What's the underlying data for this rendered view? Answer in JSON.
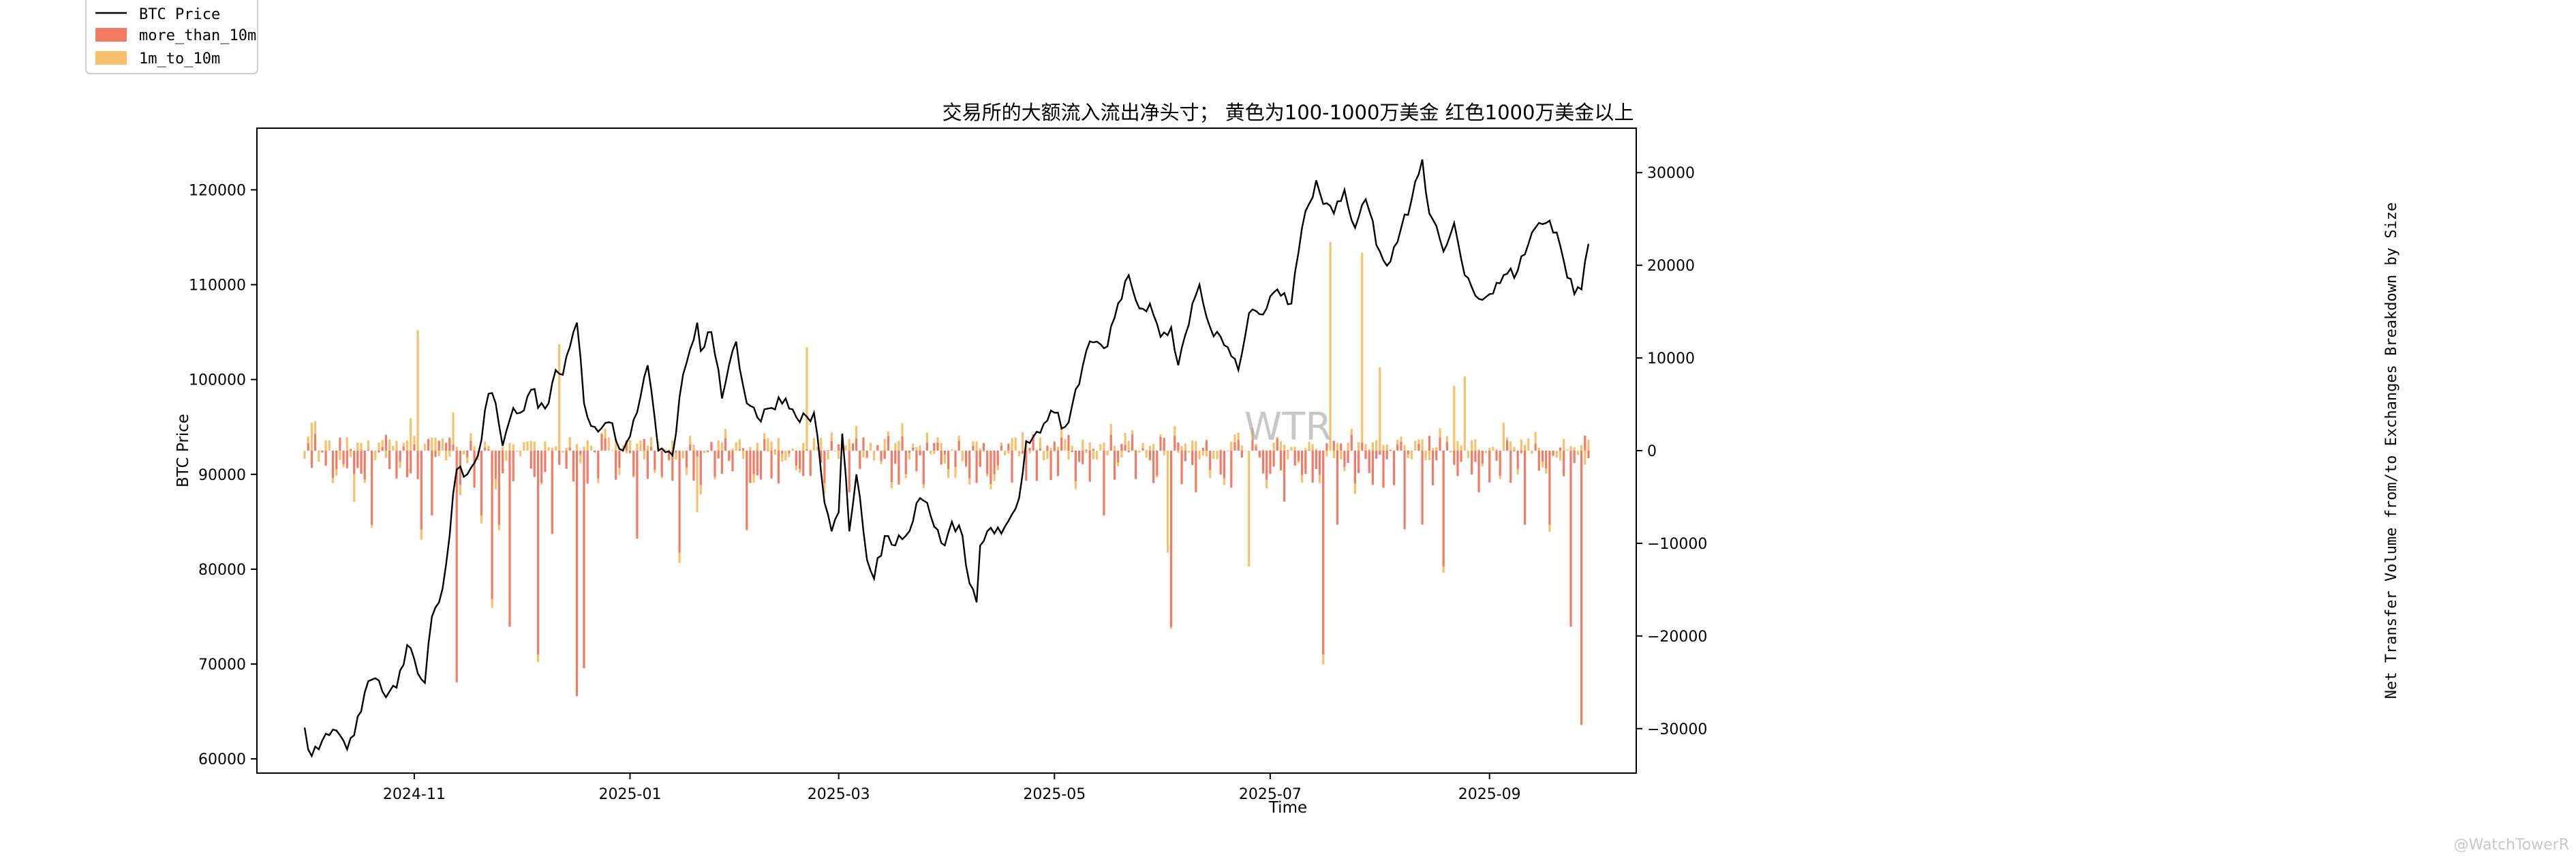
{
  "chart_data": {
    "type": "bar",
    "title": "交易所的大额流入流出净头寸； 黄色为100-1000万美金 红色1000万美金以上",
    "xlabel": "Time",
    "ylabel_left": "BTC Price",
    "ylabel_right": "Net Transfer Volume from/to Exchanges Breakdown by Size",
    "x_ticks": [
      "2024-11",
      "2025-01",
      "2025-03",
      "2025-05",
      "2025-07",
      "2025-09"
    ],
    "y_left_ticks": [
      "60000",
      "70000",
      "80000",
      "90000",
      "100000",
      "110000",
      "120000"
    ],
    "y_right_ticks": [
      "−30000",
      "−20000",
      "−10000",
      "0",
      "10000",
      "20000",
      "30000"
    ],
    "ylim_left": [
      58500,
      126500
    ],
    "ylim_right": [
      -34800,
      34800
    ],
    "grid": false,
    "legend_position": "top-left (outside plot)",
    "legend": [
      {
        "label": "BTC Price",
        "kind": "line",
        "color": "#000000"
      },
      {
        "label": "more_than_10m",
        "kind": "bar",
        "color": "#f47a64"
      },
      {
        "label": "1m_to_10m",
        "kind": "bar",
        "color": "#f9c06b"
      }
    ],
    "watermark_center": "WTR",
    "watermark_corner": "@WatchTowerR",
    "x_start": "2024-10-01",
    "x_end": "2025-09-29",
    "price_keypoints": [
      [
        "2024-10-01",
        63300
      ],
      [
        "2024-10-02",
        61000
      ],
      [
        "2024-10-05",
        61000
      ],
      [
        "2024-10-08",
        62500
      ],
      [
        "2024-10-11",
        62500
      ],
      [
        "2024-10-13",
        61000
      ],
      [
        "2024-10-15",
        62500
      ],
      [
        "2024-10-18",
        67000
      ],
      [
        "2024-10-21",
        68500
      ],
      [
        "2024-10-24",
        66500
      ],
      [
        "2024-10-27",
        67500
      ],
      [
        "2024-10-30",
        72000
      ],
      [
        "2024-11-02",
        69000
      ],
      [
        "2024-11-04",
        68000
      ],
      [
        "2024-11-06",
        75000
      ],
      [
        "2024-11-08",
        76500
      ],
      [
        "2024-11-10",
        80500
      ],
      [
        "2024-11-12",
        88000
      ],
      [
        "2024-11-13",
        90500
      ],
      [
        "2024-11-16",
        90000
      ],
      [
        "2024-11-19",
        92000
      ],
      [
        "2024-11-22",
        98500
      ],
      [
        "2024-11-24",
        97500
      ],
      [
        "2024-11-26",
        93000
      ],
      [
        "2024-11-29",
        97000
      ],
      [
        "2024-12-01",
        96500
      ],
      [
        "2024-12-05",
        99000
      ],
      [
        "2024-12-06",
        97000
      ],
      [
        "2024-12-09",
        97500
      ],
      [
        "2024-12-11",
        101000
      ],
      [
        "2024-12-13",
        100500
      ],
      [
        "2024-12-16",
        105000
      ],
      [
        "2024-12-17",
        106000
      ],
      [
        "2024-12-19",
        97500
      ],
      [
        "2024-12-20",
        96000
      ],
      [
        "2024-12-23",
        94500
      ],
      [
        "2024-12-26",
        95500
      ],
      [
        "2024-12-30",
        92500
      ],
      [
        "2025-01-01",
        94000
      ],
      [
        "2025-01-06",
        101500
      ],
      [
        "2025-01-09",
        92500
      ],
      [
        "2025-01-13",
        92000
      ],
      [
        "2025-01-16",
        100500
      ],
      [
        "2025-01-20",
        106000
      ],
      [
        "2025-01-21",
        103000
      ],
      [
        "2025-01-24",
        105000
      ],
      [
        "2025-01-27",
        98000
      ],
      [
        "2025-01-31",
        104000
      ],
      [
        "2025-02-03",
        97500
      ],
      [
        "2025-02-06",
        96000
      ],
      [
        "2025-02-10",
        97000
      ],
      [
        "2025-02-14",
        98000
      ],
      [
        "2025-02-18",
        95500
      ],
      [
        "2025-02-22",
        96500
      ],
      [
        "2025-02-25",
        87000
      ],
      [
        "2025-02-27",
        84000
      ],
      [
        "2025-03-01",
        86000
      ],
      [
        "2025-03-02",
        94300
      ],
      [
        "2025-03-04",
        84000
      ],
      [
        "2025-03-06",
        90000
      ],
      [
        "2025-03-09",
        81000
      ],
      [
        "2025-03-11",
        79000
      ],
      [
        "2025-03-14",
        83500
      ],
      [
        "2025-03-17",
        82500
      ],
      [
        "2025-03-21",
        84000
      ],
      [
        "2025-03-24",
        87500
      ],
      [
        "2025-03-26",
        87000
      ],
      [
        "2025-03-28",
        84500
      ],
      [
        "2025-03-31",
        82500
      ],
      [
        "2025-04-02",
        85000
      ],
      [
        "2025-04-05",
        83500
      ],
      [
        "2025-04-07",
        78500
      ],
      [
        "2025-04-09",
        76500
      ],
      [
        "2025-04-10",
        82500
      ],
      [
        "2025-04-12",
        84000
      ],
      [
        "2025-04-17",
        84500
      ],
      [
        "2025-04-21",
        87500
      ],
      [
        "2025-04-23",
        93500
      ],
      [
        "2025-04-26",
        94500
      ],
      [
        "2025-05-01",
        96500
      ],
      [
        "2025-05-04",
        95000
      ],
      [
        "2025-05-08",
        99500
      ],
      [
        "2025-05-10",
        103000
      ],
      [
        "2025-05-13",
        104000
      ],
      [
        "2025-05-16",
        103500
      ],
      [
        "2025-05-18",
        106500
      ],
      [
        "2025-05-22",
        111000
      ],
      [
        "2025-05-25",
        107500
      ],
      [
        "2025-05-28",
        108000
      ],
      [
        "2025-05-31",
        104500
      ],
      [
        "2025-06-03",
        105500
      ],
      [
        "2025-06-05",
        101500
      ],
      [
        "2025-06-09",
        108000
      ],
      [
        "2025-06-11",
        110000
      ],
      [
        "2025-06-14",
        105500
      ],
      [
        "2025-06-17",
        104500
      ],
      [
        "2025-06-22",
        101000
      ],
      [
        "2025-06-25",
        107000
      ],
      [
        "2025-06-30",
        107500
      ],
      [
        "2025-07-03",
        109500
      ],
      [
        "2025-07-07",
        108000
      ],
      [
        "2025-07-10",
        116000
      ],
      [
        "2025-07-14",
        121000
      ],
      [
        "2025-07-16",
        118500
      ],
      [
        "2025-07-19",
        117500
      ],
      [
        "2025-07-22",
        120000
      ],
      [
        "2025-07-25",
        116000
      ],
      [
        "2025-07-28",
        119000
      ],
      [
        "2025-08-01",
        113500
      ],
      [
        "2025-08-03",
        112000
      ],
      [
        "2025-08-06",
        114500
      ],
      [
        "2025-08-10",
        119000
      ],
      [
        "2025-08-13",
        123200
      ],
      [
        "2025-08-15",
        117500
      ],
      [
        "2025-08-19",
        113500
      ],
      [
        "2025-08-22",
        116500
      ],
      [
        "2025-08-25",
        111000
      ],
      [
        "2025-08-29",
        108500
      ],
      [
        "2025-09-01",
        109000
      ],
      [
        "2025-09-05",
        111000
      ],
      [
        "2025-09-09",
        111500
      ],
      [
        "2025-09-13",
        115500
      ],
      [
        "2025-09-17",
        116500
      ],
      [
        "2025-09-20",
        115500
      ],
      [
        "2025-09-22",
        112500
      ],
      [
        "2025-09-25",
        109000
      ],
      [
        "2025-09-27",
        109500
      ],
      [
        "2025-09-29",
        114300
      ]
    ],
    "series_more_than_10m": {
      "name": "more_than_10m",
      "color": "#f47a64",
      "points": [
        [
          "2024-10-10",
          -2000
        ],
        [
          "2024-10-20",
          -8000
        ],
        [
          "2024-10-27",
          -3000
        ],
        [
          "2024-11-03",
          -8500
        ],
        [
          "2024-11-06",
          -7000
        ],
        [
          "2024-11-13",
          -25000
        ],
        [
          "2024-11-18",
          -4000
        ],
        [
          "2024-11-20",
          -7000
        ],
        [
          "2024-11-23",
          -16000
        ],
        [
          "2024-11-25",
          -8000
        ],
        [
          "2024-11-28",
          -19000
        ],
        [
          "2024-12-06",
          -22000
        ],
        [
          "2024-12-10",
          -9000
        ],
        [
          "2024-12-17",
          -26500
        ],
        [
          "2024-12-19",
          -23500
        ],
        [
          "2024-12-23",
          -3000
        ],
        [
          "2025-01-03",
          -9500
        ],
        [
          "2025-01-15",
          -11000
        ],
        [
          "2025-01-27",
          -2500
        ],
        [
          "2025-02-03",
          -8500
        ],
        [
          "2025-02-10",
          -3000
        ],
        [
          "2025-02-18",
          -2000
        ],
        [
          "2025-02-25",
          -3500
        ],
        [
          "2025-03-04",
          -4500
        ],
        [
          "2025-03-20",
          -2500
        ],
        [
          "2025-04-01",
          -2000
        ],
        [
          "2025-04-09",
          -3500
        ],
        [
          "2025-05-15",
          -7000
        ],
        [
          "2025-05-29",
          -3500
        ],
        [
          "2025-06-03",
          -19000
        ],
        [
          "2025-06-10",
          -4500
        ],
        [
          "2025-06-20",
          -4000
        ],
        [
          "2025-07-05",
          -5500
        ],
        [
          "2025-07-16",
          -22000
        ],
        [
          "2025-07-20",
          -8000
        ],
        [
          "2025-08-02",
          -4000
        ],
        [
          "2025-08-08",
          -8500
        ],
        [
          "2025-08-13",
          -8000
        ],
        [
          "2025-08-19",
          -12500
        ],
        [
          "2025-08-29",
          -4500
        ],
        [
          "2025-09-11",
          -8000
        ],
        [
          "2025-09-18",
          -8000
        ],
        [
          "2025-09-24",
          -19000
        ],
        [
          "2025-09-27",
          -29600
        ]
      ]
    },
    "series_1m_to_10m": {
      "name": "1m_to_10m",
      "color": "#f9c06b",
      "points": [
        [
          "2024-10-03",
          3000
        ],
        [
          "2024-10-15",
          -3000
        ],
        [
          "2024-10-31",
          3500
        ],
        [
          "2024-11-02",
          13000
        ],
        [
          "2024-11-12",
          3500
        ],
        [
          "2024-12-12",
          11500
        ],
        [
          "2025-01-20",
          -6000
        ],
        [
          "2025-02-20",
          11000
        ],
        [
          "2025-04-22",
          2000
        ],
        [
          "2025-06-02",
          -11000
        ],
        [
          "2025-06-25",
          -12500
        ],
        [
          "2025-07-18",
          22500
        ],
        [
          "2025-07-27",
          20500
        ],
        [
          "2025-08-01",
          9000
        ],
        [
          "2025-08-22",
          7000
        ],
        [
          "2025-08-25",
          8000
        ],
        [
          "2025-09-05",
          3000
        ],
        [
          "2025-09-28",
          -1500
        ]
      ]
    }
  }
}
